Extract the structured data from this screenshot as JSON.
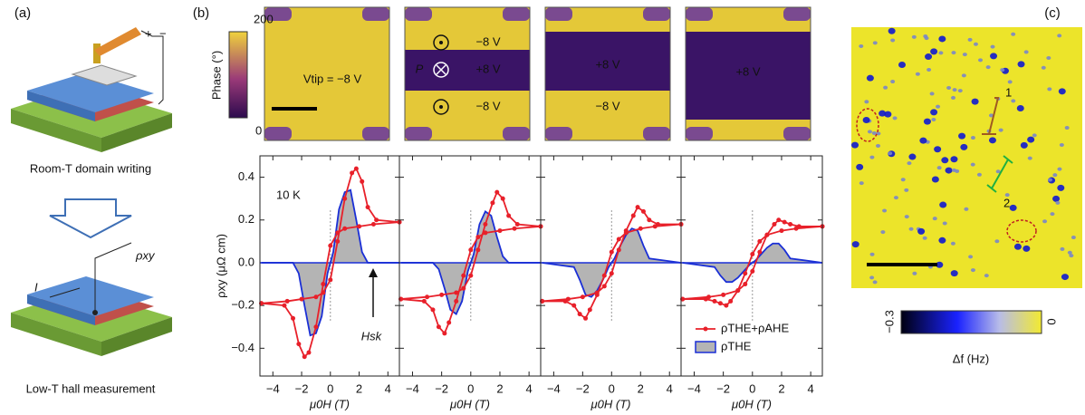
{
  "panel_a": {
    "label": "(a)",
    "caption_top": "Room-T domain writing",
    "caption_bottom": "Low-T hall measurement",
    "rho_label": "ρxy",
    "current_label": "I",
    "plus": "+",
    "minus": "−"
  },
  "panel_b": {
    "label": "(b)",
    "phase_colorbar": {
      "title": "Phase (°)",
      "max_label": "200",
      "min_label": "0"
    },
    "images": [
      {
        "texts": [
          "Vtip = −8 V"
        ]
      },
      {
        "texts": [
          "−8 V",
          "P",
          "+8 V",
          "−8 V"
        ]
      },
      {
        "texts": [
          "+8 V",
          "−8 V"
        ]
      },
      {
        "texts": [
          "+8 V"
        ]
      }
    ]
  },
  "panel_c": {
    "label": "(c)",
    "markers": [
      "1",
      "2"
    ],
    "colorbar": {
      "min_label": "−0.3",
      "max_label": "0",
      "title": "Δf (Hz)"
    }
  },
  "chart_data": [
    {
      "type": "line",
      "y_label": "ρxy (μΩ cm)",
      "x_label": "μ0H (T)",
      "annotations": [
        "10 K",
        "Hsk"
      ],
      "xlim": [
        -4.9,
        4.8
      ],
      "ylim": [
        -0.53,
        0.5
      ],
      "xticks": [
        {
          "value": -4,
          "label": "−4"
        },
        {
          "value": -2,
          "label": "−2"
        },
        0,
        2,
        4
      ],
      "yticks": [
        {
          "value": -0.4,
          "label": "−0.4"
        },
        {
          "value": -0.2,
          "label": "−0.2"
        },
        {
          "value": 0,
          "label": "0.0"
        },
        0.2,
        0.4
      ],
      "series": [
        {
          "color": "#e8202a",
          "x": [
            -4.8,
            -3,
            -2,
            -1,
            -0.5,
            0,
            0.5,
            1,
            1.5,
            1.8,
            2.2,
            2.6,
            3.2,
            4.8,
            4.8,
            3,
            2,
            1,
            0.5,
            0,
            -0.5,
            -1,
            -1.5,
            -1.8,
            -2.2,
            -2.6,
            -3.2,
            -4.8
          ],
          "values": [
            -0.19,
            -0.18,
            -0.17,
            -0.16,
            -0.14,
            -0.08,
            0.1,
            0.3,
            0.42,
            0.44,
            0.38,
            0.26,
            0.2,
            0.19,
            0.19,
            0.18,
            0.17,
            0.16,
            0.14,
            0.08,
            -0.1,
            -0.3,
            -0.42,
            -0.44,
            -0.38,
            -0.26,
            -0.2,
            -0.19
          ]
        },
        {
          "color": "#1a2fd6",
          "fill": "#b4b4b4",
          "x": [
            -4.8,
            -2.6,
            -2.2,
            -1.8,
            -1.4,
            -1,
            -0.6,
            -0.2,
            0,
            0.2,
            0.6,
            1,
            1.4,
            1.8,
            2.2,
            2.6,
            4.8
          ],
          "values": [
            0,
            0,
            -0.05,
            -0.2,
            -0.34,
            -0.33,
            -0.25,
            -0.05,
            0,
            0.05,
            0.25,
            0.33,
            0.34,
            0.2,
            0.05,
            0,
            0
          ]
        }
      ]
    },
    {
      "type": "line",
      "x_label": "μ0H (T)",
      "xlim": [
        -4.9,
        4.8
      ],
      "ylim": [
        -0.53,
        0.5
      ],
      "xticks": [
        {
          "value": -4,
          "label": "−4"
        },
        {
          "value": -2,
          "label": "−2"
        },
        0,
        2,
        4
      ],
      "yticks": [
        -0.4,
        -0.2,
        0,
        0.2,
        0.4
      ],
      "series": [
        {
          "color": "#e8202a",
          "x": [
            -4.8,
            -3,
            -2,
            -1,
            -0.5,
            0,
            0.5,
            1,
            1.5,
            1.8,
            2.2,
            2.6,
            3.2,
            4.8,
            4.8,
            3,
            2,
            1,
            0.5,
            0,
            -0.5,
            -1,
            -1.5,
            -1.8,
            -2.2,
            -2.6,
            -3.2,
            -4.8
          ],
          "values": [
            -0.17,
            -0.16,
            -0.15,
            -0.14,
            -0.12,
            -0.06,
            0.06,
            0.18,
            0.28,
            0.33,
            0.3,
            0.22,
            0.18,
            0.17,
            0.17,
            0.16,
            0.15,
            0.14,
            0.12,
            0.06,
            -0.06,
            -0.18,
            -0.28,
            -0.33,
            -0.3,
            -0.22,
            -0.18,
            -0.17
          ]
        },
        {
          "color": "#1a2fd6",
          "fill": "#b4b4b4",
          "x": [
            -4.8,
            -2.6,
            -2.2,
            -1.8,
            -1.4,
            -1,
            -0.6,
            -0.2,
            0,
            0.2,
            0.6,
            1,
            1.4,
            1.8,
            2.2,
            2.6,
            4.8
          ],
          "values": [
            0,
            0,
            -0.03,
            -0.12,
            -0.22,
            -0.24,
            -0.18,
            -0.04,
            0,
            0.04,
            0.18,
            0.24,
            0.22,
            0.12,
            0.03,
            0,
            0
          ]
        }
      ]
    },
    {
      "type": "line",
      "x_label": "μ0H (T)",
      "xlim": [
        -4.9,
        4.8
      ],
      "ylim": [
        -0.53,
        0.5
      ],
      "xticks": [
        {
          "value": -4,
          "label": "−4"
        },
        {
          "value": -2,
          "label": "−2"
        },
        0,
        2,
        4
      ],
      "yticks": [
        -0.4,
        -0.2,
        0,
        0.2,
        0.4
      ],
      "series": [
        {
          "color": "#e8202a",
          "x": [
            -4.8,
            -3,
            -2,
            -1,
            -0.5,
            0,
            0.5,
            1,
            1.5,
            1.8,
            2.2,
            2.6,
            3.2,
            4.8,
            4.8,
            3,
            2,
            1,
            0.5,
            0,
            -0.5,
            -1,
            -1.5,
            -1.8,
            -2.2,
            -2.6,
            -3.2,
            -4.8
          ],
          "values": [
            -0.18,
            -0.17,
            -0.16,
            -0.14,
            -0.11,
            -0.05,
            0.06,
            0.15,
            0.22,
            0.26,
            0.24,
            0.2,
            0.18,
            0.18,
            0.18,
            0.17,
            0.16,
            0.14,
            0.11,
            0.05,
            -0.06,
            -0.15,
            -0.22,
            -0.26,
            -0.24,
            -0.2,
            -0.18,
            -0.18
          ]
        },
        {
          "color": "#1a2fd6",
          "fill": "#b4b4b4",
          "x": [
            -4.8,
            -2.6,
            -2.2,
            -1.8,
            -1.4,
            -1,
            -0.6,
            -0.2,
            0,
            0.2,
            0.6,
            1,
            1.4,
            1.8,
            2.2,
            2.6,
            4.8
          ],
          "values": [
            0,
            -0.02,
            -0.08,
            -0.15,
            -0.16,
            -0.13,
            -0.08,
            -0.02,
            0,
            0.02,
            0.08,
            0.13,
            0.16,
            0.15,
            0.08,
            0.02,
            0
          ]
        }
      ]
    },
    {
      "type": "line",
      "x_label": "μ0H (T)",
      "legend": "lower right",
      "xlim": [
        -4.9,
        4.8
      ],
      "ylim": [
        -0.53,
        0.5
      ],
      "xticks": [
        {
          "value": -4,
          "label": "−4"
        },
        {
          "value": -2,
          "label": "−2"
        },
        0,
        2,
        4
      ],
      "yticks": [
        -0.4,
        -0.2,
        0,
        0.2,
        0.4
      ],
      "series": [
        {
          "name": "ρTHE+ρAHE",
          "color": "#e8202a",
          "x": [
            -4.8,
            -3,
            -2,
            -1,
            -0.5,
            0,
            0.5,
            1,
            1.5,
            1.8,
            2.2,
            2.6,
            3.2,
            4.8,
            4.8,
            3,
            2,
            1,
            0.5,
            0,
            -0.5,
            -1,
            -1.5,
            -1.8,
            -2.2,
            -2.6,
            -3.2,
            -4.8
          ],
          "values": [
            -0.17,
            -0.16,
            -0.15,
            -0.13,
            -0.1,
            -0.04,
            0.05,
            0.13,
            0.18,
            0.2,
            0.19,
            0.18,
            0.17,
            0.17,
            0.17,
            0.16,
            0.15,
            0.13,
            0.1,
            0.04,
            -0.05,
            -0.13,
            -0.18,
            -0.2,
            -0.19,
            -0.18,
            -0.17,
            -0.17
          ]
        },
        {
          "name": "ρTHE",
          "color": "#1a2fd6",
          "fill": "#b4b4b4",
          "x": [
            -4.8,
            -2.6,
            -2.2,
            -1.8,
            -1.4,
            -1,
            -0.6,
            -0.2,
            0,
            0.2,
            0.6,
            1,
            1.4,
            1.8,
            2.2,
            2.6,
            4.8
          ],
          "values": [
            0,
            -0.02,
            -0.06,
            -0.09,
            -0.09,
            -0.07,
            -0.04,
            -0.01,
            0,
            0.01,
            0.04,
            0.07,
            0.09,
            0.09,
            0.06,
            0.02,
            0
          ]
        }
      ]
    }
  ]
}
